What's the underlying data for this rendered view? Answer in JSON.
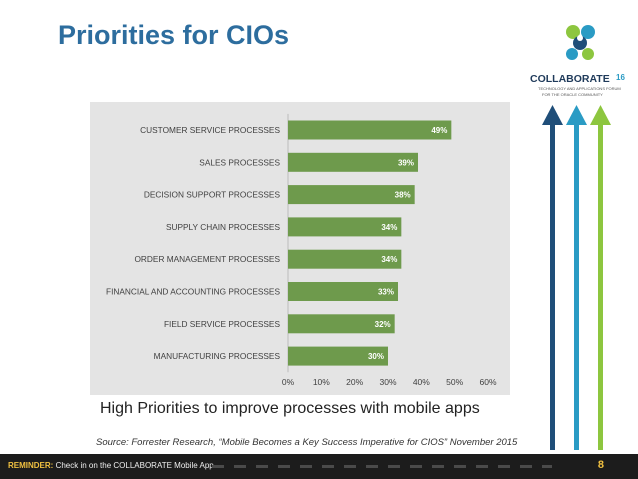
{
  "slide": {
    "title": "Priorities for CIOs",
    "subtitle": "High Priorities to improve processes with mobile apps",
    "source": "Source: Forrester Research, “Mobile Becomes a Key Success Imperative for CIOS” November 2015",
    "slide_number": "8"
  },
  "footer": {
    "reminder_prefix": "REMINDER:",
    "reminder_text": "Check in on the COLLABORATE Mobile App"
  },
  "logo": {
    "name": "COLLABORATE",
    "year": "16",
    "tagline_1": "TECHNOLOGY AND APPLICATIONS FORUM",
    "tagline_2": "FOR THE ORACLE COMMUNITY"
  },
  "colors": {
    "title": "#2d6d9e",
    "bar": "#6e9a4c",
    "panel": "#e4e4e4",
    "arrow_navy": "#1f4e79",
    "arrow_teal": "#2a9bc4",
    "arrow_green": "#8dc63f"
  },
  "chart_data": {
    "type": "bar",
    "orientation": "horizontal",
    "categories": [
      "CUSTOMER SERVICE PROCESSES",
      "SALES PROCESSES",
      "DECISION SUPPORT PROCESSES",
      "SUPPLY CHAIN PROCESSES",
      "ORDER MANAGEMENT PROCESSES",
      "FINANCIAL  AND ACCOUNTING PROCESSES",
      "FIELD SERVICE PROCESSES",
      "MANUFACTURING PROCESSES"
    ],
    "values": [
      49,
      39,
      38,
      34,
      34,
      33,
      32,
      30
    ],
    "data_labels": [
      "49%",
      "39%",
      "38%",
      "34%",
      "34%",
      "33%",
      "32%",
      "30%"
    ],
    "xlim": [
      0,
      60
    ],
    "xticks": [
      0,
      10,
      20,
      30,
      40,
      50,
      60
    ],
    "xtick_labels": [
      "0%",
      "10%",
      "20%",
      "30%",
      "40%",
      "50%",
      "60%"
    ],
    "title": "",
    "xlabel": "",
    "ylabel": "",
    "grid": false,
    "legend": "none"
  }
}
